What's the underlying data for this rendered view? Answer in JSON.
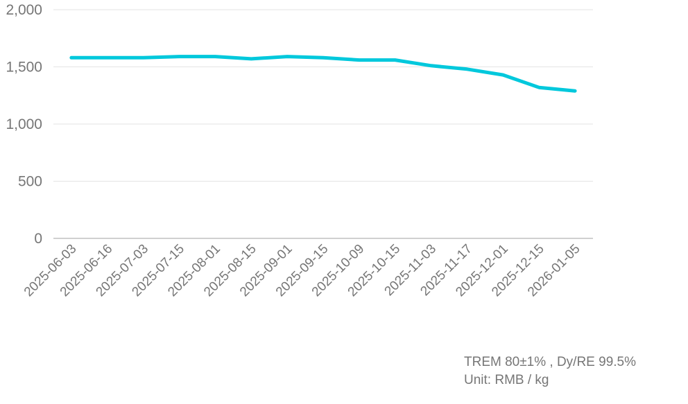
{
  "chart_data": {
    "type": "line",
    "title": "",
    "xlabel": "",
    "ylabel": "",
    "categories": [
      "2025-06-03",
      "2025-06-16",
      "2025-07-03",
      "2025-07-15",
      "2025-08-01",
      "2025-08-15",
      "2025-09-01",
      "2025-09-15",
      "2025-10-09",
      "2025-10-15",
      "2025-11-03",
      "2025-11-17",
      "2025-12-01",
      "2025-12-15",
      "2026-01-05"
    ],
    "series": [
      {
        "name": "TREM 80±1%, Dy/RE 99.5%",
        "color": "#00c8dc",
        "values": [
          1580,
          1580,
          1580,
          1590,
          1590,
          1570,
          1590,
          1580,
          1560,
          1560,
          1510,
          1480,
          1430,
          1320,
          1290
        ]
      }
    ],
    "ylim": [
      0,
      2000
    ],
    "yticks": [
      0,
      500,
      1000,
      1500,
      2000
    ],
    "ytick_labels": [
      "0",
      "500",
      "1,000",
      "1,500",
      "2,000"
    ],
    "grid": true,
    "legend": "none"
  },
  "footer": {
    "line1": "TREM 80±1% , Dy/RE 99.5%",
    "line2": "Unit: RMB / kg"
  }
}
